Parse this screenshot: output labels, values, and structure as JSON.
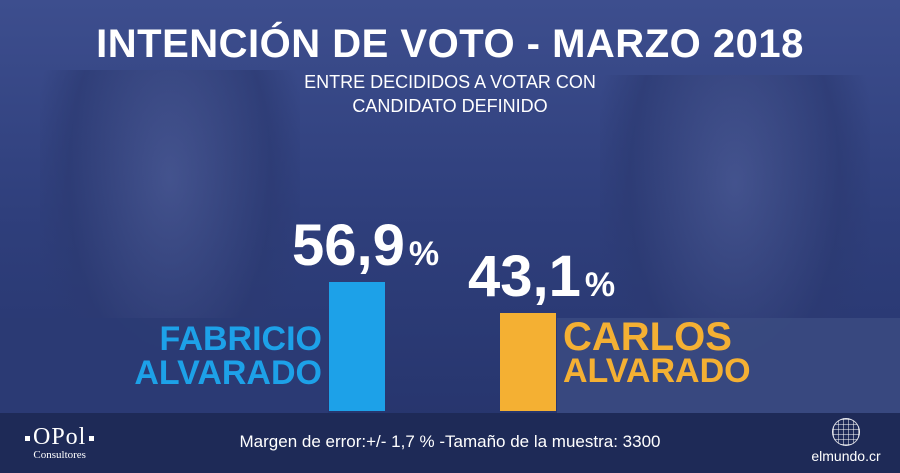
{
  "title": "INTENCIÓN DE VOTO - MARZO 2018",
  "subtitle_line1": "ENTRE DECIDIDOS A VOTAR CON",
  "subtitle_line2": "CANDIDATO DEFINIDO",
  "footnote": "Margen de error:+/- 1,7 % -Tamaño de la muestra: 3300",
  "logo_left_main": "OPol",
  "logo_left_sub": "Consultores",
  "logo_right": "elmundo.cr",
  "colors": {
    "fabricio": "#1da1e8",
    "carlos": "#f4b033"
  },
  "chart_data": {
    "type": "bar",
    "title": "INTENCIÓN DE VOTO - MARZO 2018",
    "categories": [
      "FABRICIO ALVARADO",
      "CARLOS ALVARADO"
    ],
    "values": [
      56.9,
      43.1
    ],
    "data_labels": [
      "56,9",
      "43,1"
    ],
    "unit": "%",
    "ylim": [
      0,
      100
    ],
    "grid": false,
    "legend": "none"
  },
  "candidates": [
    {
      "first": "FABRICIO",
      "last": "ALVARADO",
      "pct": "56,9",
      "sym": "%"
    },
    {
      "first": "CARLOS",
      "last": "ALVARADO",
      "pct": "43,1",
      "sym": "%"
    }
  ]
}
